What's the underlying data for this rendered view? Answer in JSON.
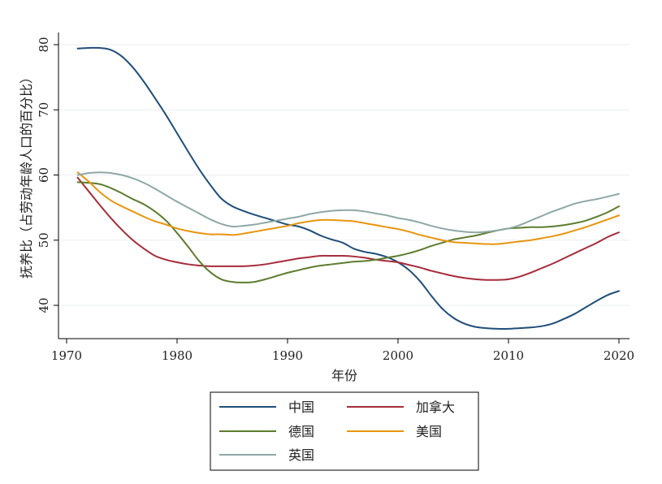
{
  "chart_data": {
    "type": "line",
    "title": "",
    "xlabel": "年份",
    "ylabel": "抚养比（占劳动年龄人口的百分比）",
    "xlim": [
      1970,
      2021
    ],
    "ylim": [
      35,
      81
    ],
    "xticks": [
      1970,
      1980,
      1990,
      2000,
      2010,
      2020
    ],
    "yticks": [
      40,
      50,
      60,
      70,
      80
    ],
    "x_tick_labels": [
      "1970",
      "1980",
      "1990",
      "2000",
      "2010",
      "2020"
    ],
    "y_tick_labels": [
      "40",
      "50",
      "60",
      "70",
      "80"
    ],
    "grid": true,
    "legend_position": "bottom",
    "series": [
      {
        "name": "中国",
        "color": "#1f4e79",
        "x": [
          1971,
          1972,
          1973,
          1974,
          1975,
          1976,
          1977,
          1978,
          1979,
          1980,
          1981,
          1982,
          1983,
          1984,
          1985,
          1986,
          1987,
          1988,
          1989,
          1990,
          1991,
          1992,
          1993,
          1994,
          1995,
          1996,
          1997,
          1998,
          1999,
          2000,
          2001,
          2002,
          2003,
          2004,
          2005,
          2006,
          2007,
          2008,
          2009,
          2010,
          2011,
          2012,
          2013,
          2014,
          2015,
          2016,
          2017,
          2018,
          2019,
          2020
        ],
        "y": [
          79.4,
          79.5,
          79.5,
          79.2,
          78.2,
          76.5,
          74.3,
          71.8,
          69.2,
          66.4,
          63.6,
          60.9,
          58.5,
          56.4,
          55.2,
          54.5,
          53.9,
          53.4,
          52.9,
          52.4,
          52.1,
          51.5,
          50.7,
          50.1,
          49.6,
          48.7,
          48.2,
          47.9,
          47.4,
          46.6,
          45.4,
          43.7,
          41.5,
          39.5,
          38.1,
          37.2,
          36.7,
          36.5,
          36.4,
          36.4,
          36.5,
          36.6,
          36.8,
          37.2,
          37.9,
          38.7,
          39.7,
          40.7,
          41.6,
          42.2
        ]
      },
      {
        "name": "加拿大",
        "color": "#a62c3a",
        "x": [
          1971,
          1972,
          1973,
          1974,
          1975,
          1976,
          1977,
          1978,
          1979,
          1980,
          1981,
          1982,
          1983,
          1984,
          1985,
          1986,
          1987,
          1988,
          1989,
          1990,
          1991,
          1992,
          1993,
          1994,
          1995,
          1996,
          1997,
          1998,
          1999,
          2000,
          2001,
          2002,
          2003,
          2004,
          2005,
          2006,
          2007,
          2008,
          2009,
          2010,
          2011,
          2012,
          2013,
          2014,
          2015,
          2016,
          2017,
          2018,
          2019,
          2020
        ],
        "y": [
          59.6,
          57.5,
          55.4,
          53.4,
          51.6,
          50.0,
          48.7,
          47.6,
          47.0,
          46.6,
          46.3,
          46.1,
          46.0,
          46.0,
          46.0,
          46.0,
          46.1,
          46.3,
          46.6,
          46.9,
          47.2,
          47.4,
          47.6,
          47.6,
          47.6,
          47.5,
          47.3,
          47.0,
          46.8,
          46.6,
          46.2,
          45.8,
          45.3,
          44.9,
          44.5,
          44.2,
          44.0,
          43.9,
          43.9,
          44.0,
          44.4,
          45.0,
          45.7,
          46.4,
          47.2,
          48.0,
          48.8,
          49.6,
          50.5,
          51.2
        ]
      },
      {
        "name": "德国",
        "color": "#5d7c2f",
        "x": [
          1971,
          1972,
          1973,
          1974,
          1975,
          1976,
          1977,
          1978,
          1979,
          1980,
          1981,
          1982,
          1983,
          1984,
          1985,
          1986,
          1987,
          1988,
          1989,
          1990,
          1991,
          1992,
          1993,
          1994,
          1995,
          1996,
          1997,
          1998,
          1999,
          2000,
          2001,
          2002,
          2003,
          2004,
          2005,
          2006,
          2007,
          2008,
          2009,
          2010,
          2011,
          2012,
          2013,
          2014,
          2015,
          2016,
          2017,
          2018,
          2019,
          2020
        ],
        "y": [
          58.9,
          58.8,
          58.6,
          58.0,
          57.2,
          56.3,
          55.5,
          54.4,
          53.0,
          51.1,
          49.0,
          46.8,
          45.1,
          44.0,
          43.6,
          43.5,
          43.6,
          44.0,
          44.5,
          45.0,
          45.4,
          45.8,
          46.1,
          46.3,
          46.5,
          46.7,
          46.8,
          47.0,
          47.3,
          47.6,
          48.0,
          48.5,
          49.1,
          49.6,
          50.1,
          50.4,
          50.7,
          51.1,
          51.5,
          51.8,
          51.9,
          52.0,
          52.0,
          52.1,
          52.3,
          52.6,
          53.0,
          53.6,
          54.3,
          55.2
        ]
      },
      {
        "name": "美国",
        "color": "#e8950f",
        "x": [
          1971,
          1972,
          1973,
          1974,
          1975,
          1976,
          1977,
          1978,
          1979,
          1980,
          1981,
          1982,
          1983,
          1984,
          1985,
          1986,
          1987,
          1988,
          1989,
          1990,
          1991,
          1992,
          1993,
          1994,
          1995,
          1996,
          1997,
          1998,
          1999,
          2000,
          2001,
          2002,
          2003,
          2004,
          2005,
          2006,
          2007,
          2008,
          2009,
          2010,
          2011,
          2012,
          2013,
          2014,
          2015,
          2016,
          2017,
          2018,
          2019,
          2020
        ],
        "y": [
          60.4,
          59.0,
          57.4,
          56.1,
          55.2,
          54.4,
          53.6,
          52.9,
          52.4,
          51.8,
          51.4,
          51.1,
          50.9,
          50.9,
          50.8,
          51.0,
          51.3,
          51.6,
          51.9,
          52.2,
          52.6,
          52.9,
          53.1,
          53.1,
          53.0,
          52.9,
          52.6,
          52.3,
          52.0,
          51.7,
          51.3,
          50.8,
          50.4,
          50.0,
          49.7,
          49.6,
          49.5,
          49.4,
          49.4,
          49.6,
          49.8,
          50.0,
          50.3,
          50.6,
          51.0,
          51.5,
          52.0,
          52.6,
          53.2,
          53.8
        ]
      },
      {
        "name": "英国",
        "color": "#8ea8a6",
        "x": [
          1971,
          1972,
          1973,
          1974,
          1975,
          1976,
          1977,
          1978,
          1979,
          1980,
          1981,
          1982,
          1983,
          1984,
          1985,
          1986,
          1987,
          1988,
          1989,
          1990,
          1991,
          1992,
          1993,
          1994,
          1995,
          1996,
          1997,
          1998,
          1999,
          2000,
          2001,
          2002,
          2003,
          2004,
          2005,
          2006,
          2007,
          2008,
          2009,
          2010,
          2011,
          2012,
          2013,
          2014,
          2015,
          2016,
          2017,
          2018,
          2019,
          2020
        ],
        "y": [
          60.0,
          60.3,
          60.4,
          60.3,
          60.0,
          59.5,
          58.8,
          57.9,
          56.9,
          55.9,
          55.0,
          54.1,
          53.2,
          52.5,
          52.1,
          52.2,
          52.4,
          52.7,
          53.0,
          53.3,
          53.6,
          54.0,
          54.3,
          54.5,
          54.6,
          54.6,
          54.4,
          54.1,
          53.8,
          53.4,
          53.1,
          52.7,
          52.2,
          51.8,
          51.5,
          51.3,
          51.2,
          51.3,
          51.5,
          51.8,
          52.3,
          53.0,
          53.7,
          54.4,
          55.0,
          55.6,
          56.0,
          56.3,
          56.7,
          57.1
        ]
      }
    ]
  }
}
